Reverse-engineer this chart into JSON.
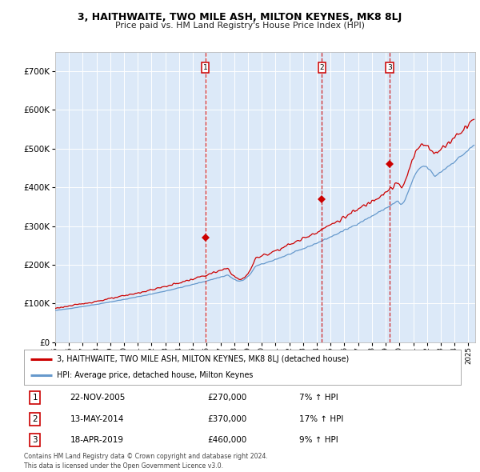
{
  "title": "3, HAITHWAITE, TWO MILE ASH, MILTON KEYNES, MK8 8LJ",
  "subtitle": "Price paid vs. HM Land Registry's House Price Index (HPI)",
  "legend_red": "3, HAITHWAITE, TWO MILE ASH, MILTON KEYNES, MK8 8LJ (detached house)",
  "legend_blue": "HPI: Average price, detached house, Milton Keynes",
  "transactions": [
    {
      "num": 1,
      "date": "22-NOV-2005",
      "price": 270000,
      "pct": "7%",
      "dir": "↑",
      "x": 2005.9
    },
    {
      "num": 2,
      "date": "13-MAY-2014",
      "price": 370000,
      "pct": "17%",
      "dir": "↑",
      "x": 2014.37
    },
    {
      "num": 3,
      "date": "18-APR-2019",
      "price": 460000,
      "pct": "9%",
      "dir": "↑",
      "x": 2019.29
    }
  ],
  "xmin": 1995.0,
  "xmax": 2025.5,
  "ymin": 0,
  "ymax": 750000,
  "background_color": "#dce9f8",
  "red_color": "#cc0000",
  "blue_color": "#6699cc",
  "footnote": "Contains HM Land Registry data © Crown copyright and database right 2024.\nThis data is licensed under the Open Government Licence v3.0."
}
